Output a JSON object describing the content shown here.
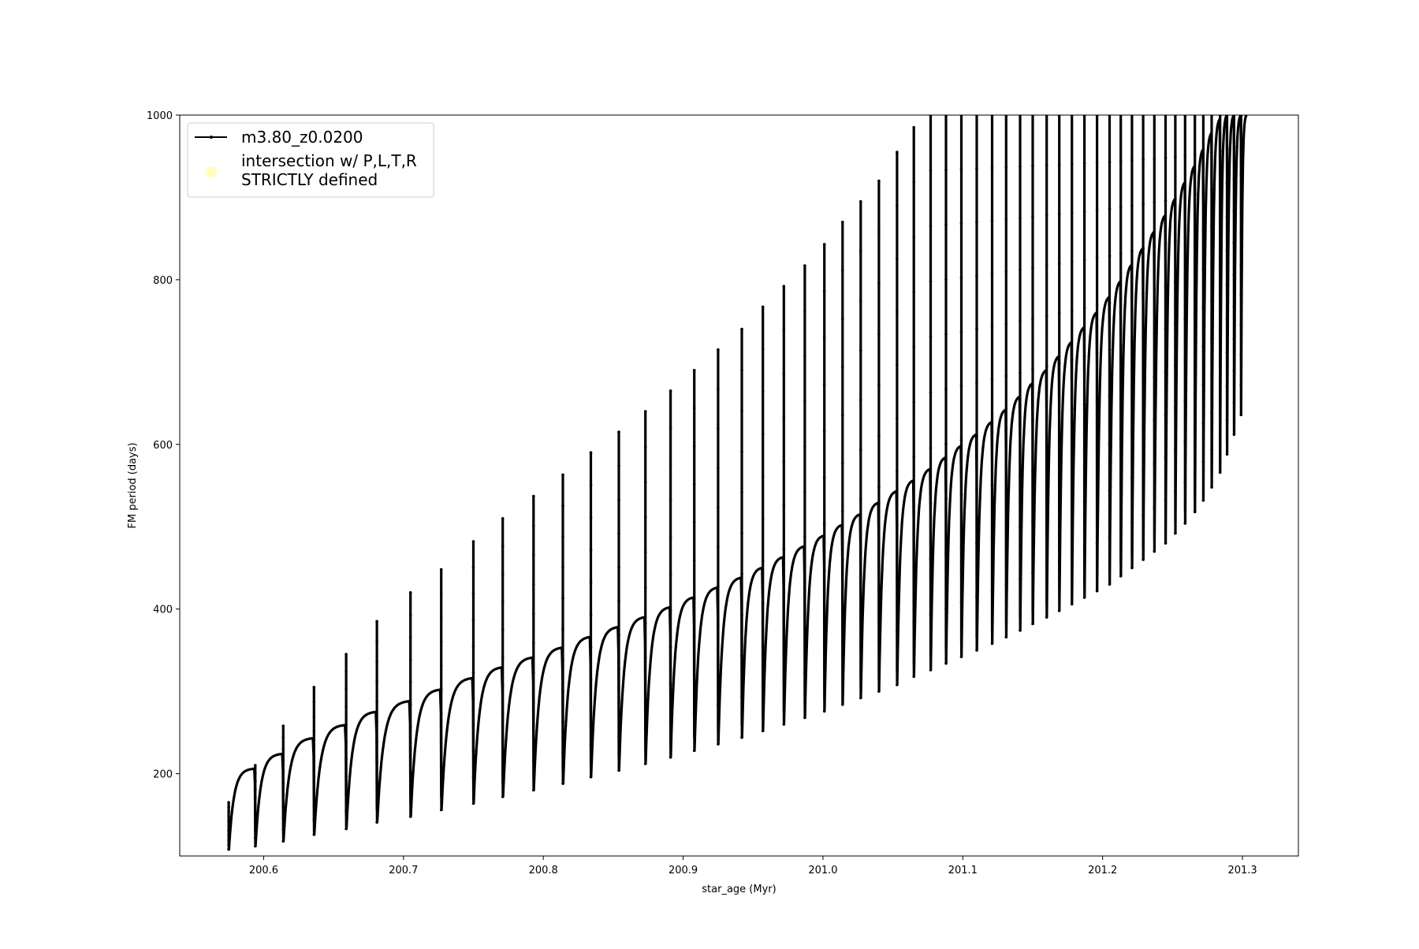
{
  "chart_data": {
    "type": "line",
    "title": "",
    "xlabel": "star_age (Myr)",
    "ylabel": "FM period (days)",
    "xlim": [
      200.54,
      201.34
    ],
    "ylim": [
      100,
      1000
    ],
    "grid": false,
    "legend_position": "top-left",
    "x_ticks": [
      200.6,
      200.7,
      200.8,
      200.9,
      201.0,
      201.1,
      201.2,
      201.3
    ],
    "x_tick_labels": [
      "200.6",
      "200.7",
      "200.8",
      "200.9",
      "201.0",
      "201.1",
      "201.2",
      "201.3"
    ],
    "y_ticks": [
      200,
      400,
      600,
      800,
      1000
    ],
    "y_tick_labels": [
      "200",
      "400",
      "600",
      "800",
      "1000"
    ],
    "legend": {
      "entries": [
        {
          "label": "m3.80_z0.0200",
          "marker": "line-with-dots",
          "color": "#000000"
        },
        {
          "label": "intersection w/ P,L,T,R",
          "label_line2": "STRICTLY defined",
          "marker": "circle",
          "color": "#ffffbb"
        }
      ]
    },
    "series": [
      {
        "name": "m3.80_z0.0200",
        "color": "#000000",
        "pulse_ages": [
          200.575,
          200.594,
          200.614,
          200.636,
          200.659,
          200.681,
          200.705,
          200.727,
          200.75,
          200.771,
          200.793,
          200.814,
          200.834,
          200.854,
          200.873,
          200.891,
          200.908,
          200.925,
          200.942,
          200.957,
          200.972,
          200.987,
          201.001,
          201.014,
          201.027,
          201.04,
          201.053,
          201.065,
          201.077,
          201.088,
          201.099,
          201.11,
          201.121,
          201.131,
          201.141,
          201.15,
          201.16,
          201.169,
          201.178,
          201.187,
          201.196,
          201.205,
          201.213,
          201.221,
          201.229,
          201.237,
          201.245,
          201.252,
          201.259,
          201.266,
          201.272,
          201.278,
          201.284,
          201.289,
          201.294,
          201.299
        ],
        "cycle_min_period": [
          108,
          112,
          118,
          126,
          133,
          141,
          148,
          156,
          164,
          172,
          180,
          188,
          196,
          204,
          212,
          220,
          228,
          236,
          244,
          252,
          260,
          268,
          276,
          284,
          292,
          300,
          308,
          318,
          326,
          334,
          342,
          350,
          358,
          366,
          374,
          382,
          390,
          398,
          406,
          414,
          422,
          430,
          440,
          450,
          460,
          470,
          480,
          492,
          504,
          518,
          532,
          548,
          566,
          588,
          612,
          636
        ],
        "cycle_peak_period": [
          206,
          224,
          243,
          259,
          275,
          288,
          302,
          316,
          329,
          341,
          353,
          366,
          378,
          390,
          402,
          414,
          426,
          438,
          450,
          463,
          476,
          489,
          502,
          515,
          529,
          543,
          556,
          570,
          584,
          598,
          612,
          627,
          642,
          658,
          674,
          690,
          707,
          724,
          742,
          760,
          779,
          798,
          818,
          838,
          858,
          878,
          898,
          918,
          938,
          958,
          978,
          995,
          1000,
          1000,
          1000,
          1000
        ],
        "flash_spike_period": [
          165,
          210,
          258,
          305,
          345,
          385,
          420,
          448,
          482,
          510,
          537,
          563,
          590,
          615,
          640,
          665,
          690,
          715,
          740,
          767,
          792,
          817,
          843,
          870,
          895,
          920,
          955,
          985,
          1000,
          1000,
          1000,
          1000,
          1000,
          1000,
          1000,
          1000,
          1000,
          1000,
          1000,
          1000,
          1000,
          1000,
          1000,
          1000,
          1000,
          1000,
          1000,
          1000,
          1000,
          1000,
          1000,
          1000,
          1000,
          1000,
          1000,
          1000
        ]
      }
    ]
  }
}
